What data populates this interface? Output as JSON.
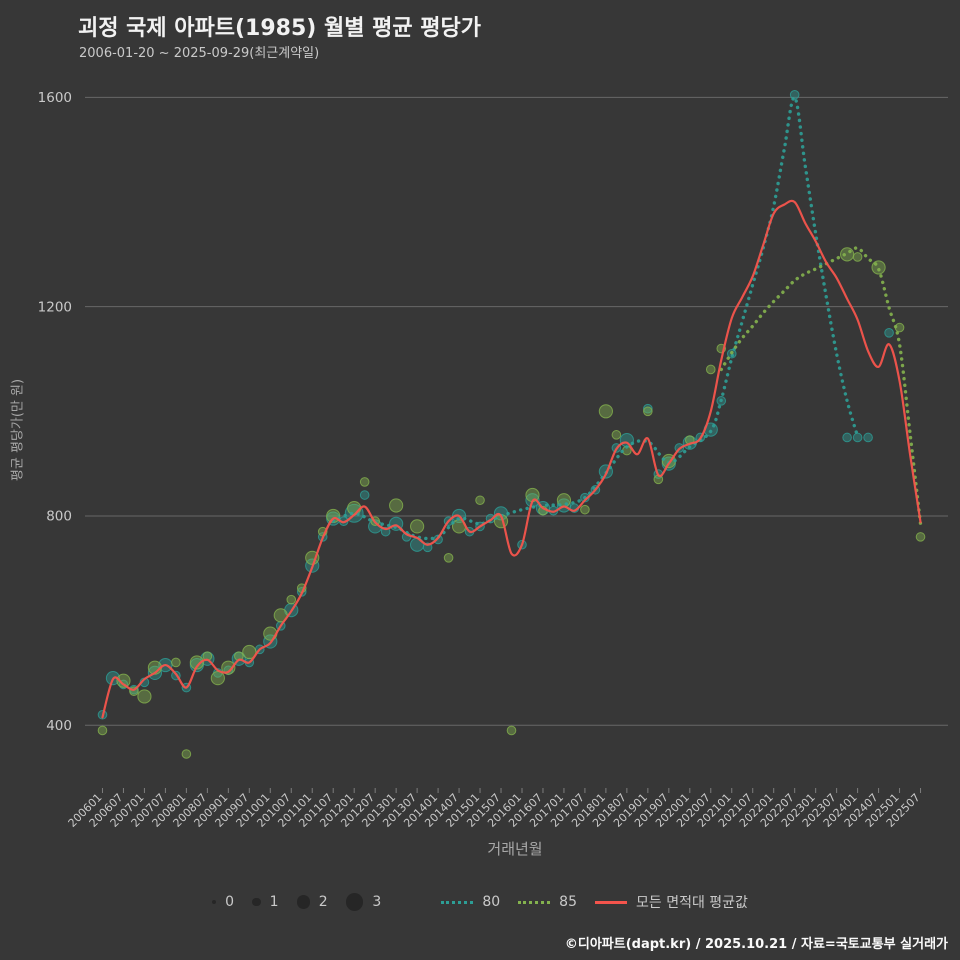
{
  "title": "괴정 국제 아파트(1985) 월별 평균 평당가",
  "subtitle": "2006-01-20 ~ 2025-09-29(최근계약일)",
  "footer": "©디아파트(dapt.kr) / 2025.10.21 / 자료=국토교통부 실거래가",
  "colors": {
    "background": "#373737",
    "grid": "#8f8f8f",
    "tick_text": "#c9c9c9",
    "muted_text": "#a8a8a8",
    "series80": "#2d9e96",
    "series85": "#84b24e",
    "avg": "#f4544c",
    "legend_dot": "#262626"
  },
  "legend": {
    "sizes": [
      {
        "label": "0",
        "size": 0
      },
      {
        "label": "1",
        "size": 1
      },
      {
        "label": "2",
        "size": 2
      },
      {
        "label": "3",
        "size": 3
      }
    ],
    "series": [
      {
        "label": "80",
        "key": "series80",
        "style": "dotted"
      },
      {
        "label": "85",
        "key": "series85",
        "style": "dotted"
      },
      {
        "label": "모든 면적대 평균값",
        "key": "avg",
        "style": "solid"
      }
    ]
  },
  "chart_data": {
    "type": "scatter",
    "title": "괴정 국제 아파트(1985) 월별 평균 평당가",
    "xlabel": "거래년월",
    "ylabel": "평균 평당가(만 원)",
    "ylim": [
      280,
      1660
    ],
    "yticks": [
      400,
      800,
      1200,
      1600
    ],
    "grid": "horizontal",
    "legend_position": "bottom",
    "xticks": [
      "200601",
      "200607",
      "200701",
      "200707",
      "200801",
      "200807",
      "200901",
      "200907",
      "201001",
      "201007",
      "201101",
      "201107",
      "201201",
      "201207",
      "201301",
      "201307",
      "201401",
      "201407",
      "201501",
      "201507",
      "201601",
      "201607",
      "201701",
      "201707",
      "201801",
      "201807",
      "201901",
      "201907",
      "202001",
      "202007",
      "202101",
      "202107",
      "202201",
      "202207",
      "202301",
      "202307",
      "202401",
      "202407",
      "202501",
      "202507"
    ],
    "series_scatter": [
      {
        "name": "80",
        "color_key": "series80",
        "points": [
          [
            "200601",
            420,
            1
          ],
          [
            "200604",
            490,
            2
          ],
          [
            "200607",
            478,
            1
          ],
          [
            "200610",
            468,
            1
          ],
          [
            "200701",
            482,
            1
          ],
          [
            "200704",
            500,
            2
          ],
          [
            "200707",
            515,
            2
          ],
          [
            "200710",
            495,
            1
          ],
          [
            "200801",
            472,
            1
          ],
          [
            "200804",
            515,
            2
          ],
          [
            "200807",
            527,
            2
          ],
          [
            "200810",
            500,
            1
          ],
          [
            "200901",
            505,
            1
          ],
          [
            "200904",
            527,
            2
          ],
          [
            "200907",
            520,
            1
          ],
          [
            "200910",
            545,
            1
          ],
          [
            "201001",
            560,
            2
          ],
          [
            "201004",
            590,
            1
          ],
          [
            "201007",
            620,
            2
          ],
          [
            "201010",
            655,
            1
          ],
          [
            "201101",
            705,
            2
          ],
          [
            "201104",
            760,
            1
          ],
          [
            "201107",
            795,
            2
          ],
          [
            "201110",
            790,
            1
          ],
          [
            "201201",
            805,
            3
          ],
          [
            "201204",
            840,
            1
          ],
          [
            "201207",
            780,
            2
          ],
          [
            "201210",
            770,
            1
          ],
          [
            "201301",
            785,
            2
          ],
          [
            "201304",
            760,
            1
          ],
          [
            "201307",
            745,
            2
          ],
          [
            "201310",
            740,
            1
          ],
          [
            "201401",
            755,
            1
          ],
          [
            "201404",
            790,
            1
          ],
          [
            "201407",
            800,
            2
          ],
          [
            "201410",
            770,
            1
          ],
          [
            "201501",
            780,
            1
          ],
          [
            "201504",
            795,
            1
          ],
          [
            "201507",
            805,
            2
          ],
          [
            "201601",
            745,
            1
          ],
          [
            "201604",
            830,
            2
          ],
          [
            "201607",
            815,
            2
          ],
          [
            "201610",
            810,
            1
          ],
          [
            "201701",
            820,
            2
          ],
          [
            "201704",
            815,
            1
          ],
          [
            "201707",
            835,
            1
          ],
          [
            "201710",
            850,
            1
          ],
          [
            "201801",
            885,
            2
          ],
          [
            "201804",
            930,
            1
          ],
          [
            "201807",
            945,
            2
          ],
          [
            "201901",
            1005,
            1
          ],
          [
            "201904",
            880,
            1
          ],
          [
            "201907",
            900,
            2
          ],
          [
            "201910",
            930,
            1
          ],
          [
            "202001",
            940,
            2
          ],
          [
            "202004",
            950,
            1
          ],
          [
            "202007",
            965,
            2
          ],
          [
            "202010",
            1020,
            1
          ],
          [
            "202101",
            1110,
            1
          ],
          [
            "202207",
            1605,
            1
          ],
          [
            "202310",
            950,
            1
          ],
          [
            "202401",
            950,
            1
          ],
          [
            "202404",
            950,
            1
          ],
          [
            "202410",
            1150,
            1
          ]
        ]
      },
      {
        "name": "85",
        "color_key": "series85",
        "points": [
          [
            "200601",
            390,
            1
          ],
          [
            "200607",
            485,
            2
          ],
          [
            "200610",
            465,
            1
          ],
          [
            "200701",
            455,
            2
          ],
          [
            "200704",
            510,
            2
          ],
          [
            "200710",
            520,
            1
          ],
          [
            "200801",
            345,
            1
          ],
          [
            "200804",
            520,
            2
          ],
          [
            "200807",
            532,
            1
          ],
          [
            "200810",
            490,
            2
          ],
          [
            "200901",
            510,
            2
          ],
          [
            "200904",
            532,
            1
          ],
          [
            "200907",
            540,
            2
          ],
          [
            "201001",
            575,
            2
          ],
          [
            "201004",
            610,
            2
          ],
          [
            "201007",
            640,
            1
          ],
          [
            "201010",
            662,
            1
          ],
          [
            "201101",
            720,
            2
          ],
          [
            "201104",
            770,
            1
          ],
          [
            "201107",
            800,
            2
          ],
          [
            "201201",
            815,
            2
          ],
          [
            "201204",
            865,
            1
          ],
          [
            "201207",
            790,
            1
          ],
          [
            "201301",
            820,
            2
          ],
          [
            "201307",
            780,
            2
          ],
          [
            "201404",
            720,
            1
          ],
          [
            "201407",
            780,
            2
          ],
          [
            "201501",
            830,
            1
          ],
          [
            "201507",
            790,
            2
          ],
          [
            "201510",
            390,
            1
          ],
          [
            "201604",
            840,
            2
          ],
          [
            "201607",
            810,
            1
          ],
          [
            "201701",
            830,
            2
          ],
          [
            "201707",
            812,
            1
          ],
          [
            "201801",
            1000,
            2
          ],
          [
            "201804",
            955,
            1
          ],
          [
            "201807",
            925,
            1
          ],
          [
            "201901",
            1000,
            1
          ],
          [
            "201904",
            870,
            1
          ],
          [
            "201907",
            905,
            2
          ],
          [
            "202001",
            945,
            1
          ],
          [
            "202007",
            1080,
            1
          ],
          [
            "202010",
            1120,
            1
          ],
          [
            "202310",
            1300,
            2
          ],
          [
            "202401",
            1295,
            1
          ],
          [
            "202407",
            1275,
            2
          ],
          [
            "202501",
            1160,
            1
          ],
          [
            "202507",
            760,
            1
          ]
        ]
      }
    ],
    "series_lines": [
      {
        "name": "80",
        "color_key": "series80",
        "style": "dotted",
        "points": [
          [
            "201107",
            790
          ],
          [
            "201201",
            805
          ],
          [
            "201207",
            788
          ],
          [
            "201301",
            778
          ],
          [
            "201307",
            760
          ],
          [
            "201401",
            760
          ],
          [
            "201407",
            795
          ],
          [
            "201501",
            785
          ],
          [
            "201507",
            800
          ],
          [
            "201601",
            812
          ],
          [
            "201607",
            820
          ],
          [
            "201701",
            822
          ],
          [
            "201707",
            835
          ],
          [
            "201801",
            882
          ],
          [
            "201807",
            932
          ],
          [
            "201901",
            942
          ],
          [
            "201907",
            902
          ],
          [
            "202001",
            932
          ],
          [
            "202007",
            962
          ],
          [
            "202010",
            1022
          ],
          [
            "202101",
            1102
          ],
          [
            "202104",
            1172
          ],
          [
            "202107",
            1242
          ],
          [
            "202110",
            1312
          ],
          [
            "202201",
            1392
          ],
          [
            "202204",
            1500
          ],
          [
            "202207",
            1600
          ],
          [
            "202210",
            1470
          ],
          [
            "202301",
            1340
          ],
          [
            "202304",
            1220
          ],
          [
            "202307",
            1110
          ],
          [
            "202310",
            1020
          ],
          [
            "202401",
            952
          ]
        ]
      },
      {
        "name": "85",
        "color_key": "series85",
        "style": "dotted",
        "points": [
          [
            "202010",
            1080
          ],
          [
            "202101",
            1112
          ],
          [
            "202104",
            1140
          ],
          [
            "202107",
            1163
          ],
          [
            "202110",
            1188
          ],
          [
            "202201",
            1210
          ],
          [
            "202204",
            1230
          ],
          [
            "202207",
            1250
          ],
          [
            "202210",
            1263
          ],
          [
            "202301",
            1272
          ],
          [
            "202304",
            1282
          ],
          [
            "202307",
            1292
          ],
          [
            "202310",
            1302
          ],
          [
            "202401",
            1312
          ],
          [
            "202404",
            1292
          ],
          [
            "202407",
            1272
          ],
          [
            "202410",
            1198
          ],
          [
            "202501",
            1128
          ],
          [
            "202504",
            958
          ],
          [
            "202507",
            785
          ]
        ]
      },
      {
        "name": "모든 면적대 평균값",
        "color_key": "avg",
        "style": "solid",
        "points": [
          [
            "200601",
            415
          ],
          [
            "200604",
            488
          ],
          [
            "200607",
            478
          ],
          [
            "200610",
            468
          ],
          [
            "200701",
            488
          ],
          [
            "200704",
            500
          ],
          [
            "200707",
            515
          ],
          [
            "200710",
            498
          ],
          [
            "200801",
            472
          ],
          [
            "200804",
            512
          ],
          [
            "200807",
            525
          ],
          [
            "200810",
            505
          ],
          [
            "200901",
            502
          ],
          [
            "200904",
            525
          ],
          [
            "200907",
            520
          ],
          [
            "200910",
            545
          ],
          [
            "201001",
            557
          ],
          [
            "201004",
            590
          ],
          [
            "201007",
            618
          ],
          [
            "201010",
            652
          ],
          [
            "201101",
            702
          ],
          [
            "201104",
            758
          ],
          [
            "201107",
            795
          ],
          [
            "201110",
            788
          ],
          [
            "201201",
            802
          ],
          [
            "201204",
            818
          ],
          [
            "201207",
            788
          ],
          [
            "201210",
            775
          ],
          [
            "201301",
            782
          ],
          [
            "201304",
            765
          ],
          [
            "201307",
            758
          ],
          [
            "201310",
            745
          ],
          [
            "201401",
            758
          ],
          [
            "201404",
            790
          ],
          [
            "201407",
            800
          ],
          [
            "201410",
            770
          ],
          [
            "201501",
            780
          ],
          [
            "201504",
            792
          ],
          [
            "201507",
            800
          ],
          [
            "201510",
            728
          ],
          [
            "201601",
            745
          ],
          [
            "201604",
            828
          ],
          [
            "201607",
            815
          ],
          [
            "201610",
            808
          ],
          [
            "201701",
            818
          ],
          [
            "201704",
            810
          ],
          [
            "201707",
            830
          ],
          [
            "201710",
            850
          ],
          [
            "201801",
            880
          ],
          [
            "201804",
            928
          ],
          [
            "201807",
            940
          ],
          [
            "201810",
            918
          ],
          [
            "201901",
            948
          ],
          [
            "201904",
            878
          ],
          [
            "201907",
            900
          ],
          [
            "201910",
            928
          ],
          [
            "202001",
            938
          ],
          [
            "202004",
            948
          ],
          [
            "202007",
            1000
          ],
          [
            "202010",
            1098
          ],
          [
            "202101",
            1178
          ],
          [
            "202104",
            1218
          ],
          [
            "202107",
            1258
          ],
          [
            "202110",
            1318
          ],
          [
            "202201",
            1378
          ],
          [
            "202204",
            1395
          ],
          [
            "202207",
            1400
          ],
          [
            "202210",
            1360
          ],
          [
            "202301",
            1325
          ],
          [
            "202304",
            1285
          ],
          [
            "202307",
            1255
          ],
          [
            "202310",
            1215
          ],
          [
            "202401",
            1175
          ],
          [
            "202404",
            1115
          ],
          [
            "202407",
            1085
          ],
          [
            "202410",
            1128
          ],
          [
            "202501",
            1058
          ],
          [
            "202504",
            918
          ],
          [
            "202507",
            788
          ]
        ]
      }
    ]
  }
}
